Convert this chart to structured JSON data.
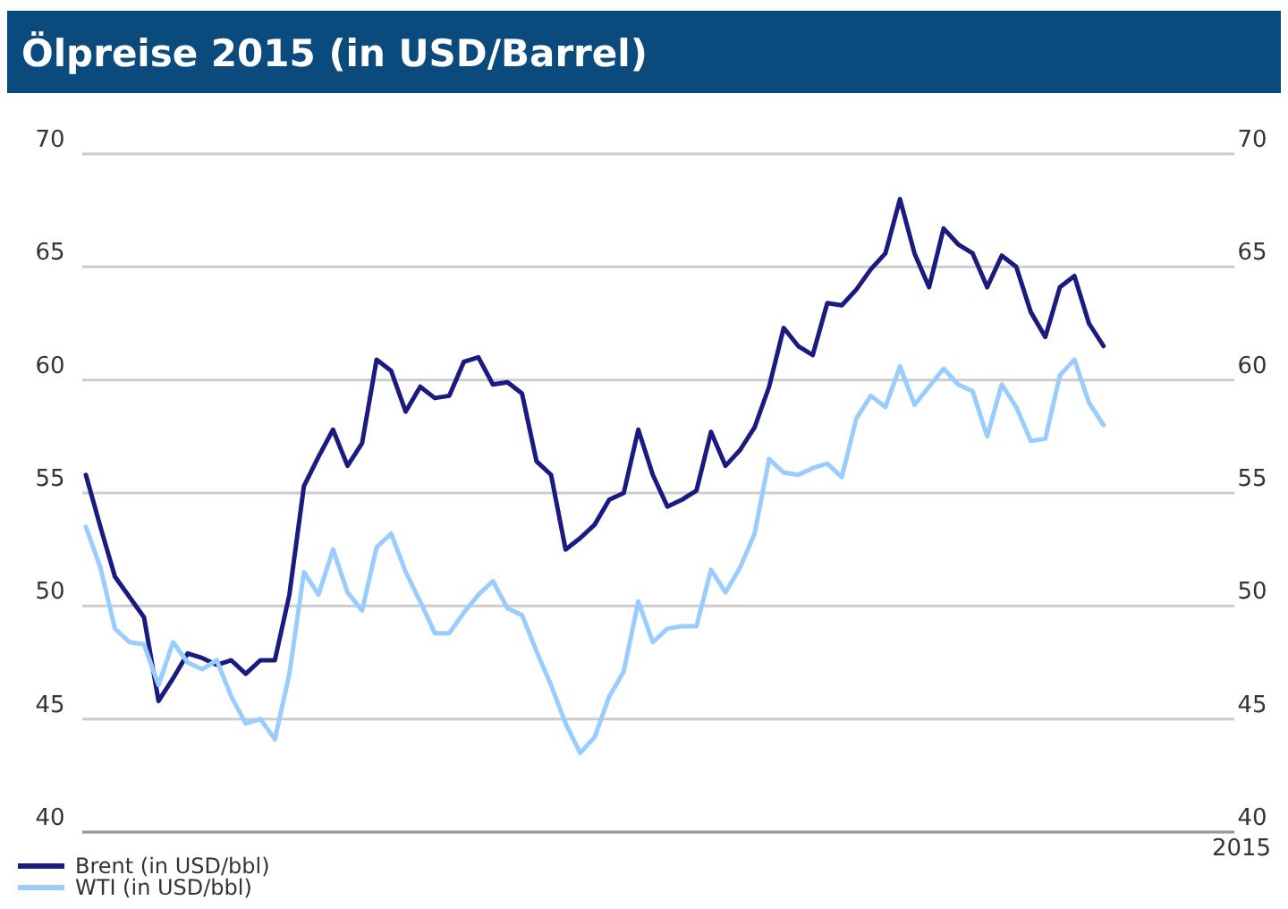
{
  "chart_data": {
    "type": "line",
    "title": "Ölpreise 2015 (in USD/Barrel)",
    "xlabel": "2015",
    "categories": [
      null,
      null,
      null,
      null,
      null,
      null,
      null,
      null,
      null,
      null,
      null,
      null,
      null,
      null,
      null,
      null,
      null,
      null,
      null,
      null,
      null,
      null,
      null,
      null,
      null,
      null,
      null,
      null,
      null,
      null,
      null,
      null,
      null,
      null,
      null,
      null,
      null,
      null,
      null,
      null,
      null,
      null,
      null,
      null,
      null,
      null,
      null,
      null,
      null,
      null,
      null,
      null,
      null,
      null,
      null,
      null,
      null,
      null,
      null,
      null,
      null,
      null,
      null,
      null,
      null,
      null,
      null,
      null,
      null,
      null,
      null,
      null,
      null,
      null,
      null,
      null,
      null,
      null,
      null,
      null
    ],
    "series": [
      {
        "name": "Brent (in USD/bbl)",
        "color": "#1a1a80",
        "values": [
          55.8,
          53.5,
          51.3,
          50.4,
          49.5,
          45.8,
          46.8,
          47.9,
          47.7,
          47.4,
          47.6,
          47.0,
          47.6,
          47.6,
          50.5,
          55.3,
          56.6,
          57.8,
          56.2,
          57.2,
          60.9,
          60.4,
          58.6,
          59.7,
          59.2,
          59.3,
          60.8,
          61.0,
          59.8,
          59.9,
          59.4,
          56.4,
          55.8,
          52.5,
          53.0,
          53.6,
          54.7,
          55.0,
          57.8,
          55.8,
          54.4,
          54.7,
          55.1,
          57.7,
          56.2,
          56.9,
          57.9,
          59.7,
          62.3,
          61.5,
          61.1,
          63.4,
          63.3,
          64.0,
          64.9,
          65.6,
          68.0,
          65.6,
          64.1,
          66.7,
          66.0,
          65.6,
          64.1,
          65.5,
          65.0,
          63.0,
          61.9,
          64.1,
          64.6,
          62.5,
          61.5,
          null,
          null,
          null,
          null,
          null,
          null,
          null,
          null,
          null
        ]
      },
      {
        "name": "WTI (in USD/bbl)",
        "color": "#99ccff",
        "values": [
          53.5,
          51.7,
          49.0,
          48.4,
          48.3,
          46.5,
          48.4,
          47.5,
          47.2,
          47.6,
          46.0,
          44.8,
          45.0,
          44.1,
          47.0,
          51.5,
          50.5,
          52.5,
          50.6,
          49.8,
          52.6,
          53.2,
          51.5,
          50.2,
          48.8,
          48.8,
          49.7,
          50.5,
          51.1,
          49.9,
          49.6,
          48.0,
          46.5,
          44.8,
          43.5,
          44.2,
          46.0,
          47.1,
          50.2,
          48.4,
          49.0,
          49.1,
          49.1,
          51.6,
          50.6,
          51.7,
          53.2,
          56.5,
          55.9,
          55.8,
          56.1,
          56.3,
          55.7,
          58.3,
          59.3,
          58.8,
          60.6,
          58.9,
          59.7,
          60.5,
          59.8,
          59.5,
          57.5,
          59.8,
          58.8,
          57.3,
          57.4,
          60.2,
          60.9,
          59.0,
          58.0,
          null,
          null,
          null,
          null,
          null,
          null,
          null,
          null,
          null
        ]
      }
    ],
    "ylim": [
      40,
      70
    ],
    "yticks": [
      40,
      45,
      50,
      55,
      60,
      65,
      70
    ],
    "y2lim": [
      40,
      70
    ],
    "y2ticks": [
      40,
      45,
      50,
      55,
      60,
      65,
      70
    ],
    "grid": "y",
    "legend": "bottom left",
    "marker": "none",
    "line_style": "solid"
  }
}
